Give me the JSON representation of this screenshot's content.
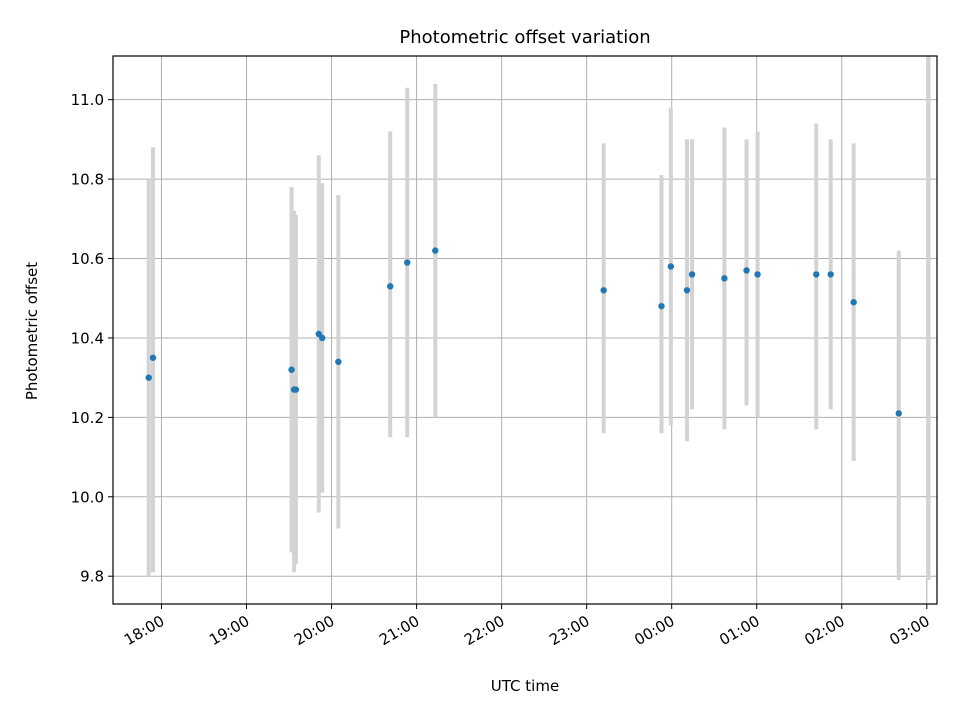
{
  "chart_data": {
    "type": "scatter",
    "title": "Photometric offset variation",
    "xlabel": "UTC time",
    "ylabel": "Photometric offset",
    "grid": true,
    "x_unit": "hours since 00:00 of first day",
    "xlim": [
      17.43,
      27.12
    ],
    "ylim": [
      9.73,
      11.11
    ],
    "x_ticks": [
      18,
      19,
      20,
      21,
      22,
      23,
      24,
      25,
      26,
      27
    ],
    "x_tick_labels": [
      "18:00",
      "19:00",
      "20:00",
      "21:00",
      "22:00",
      "23:00",
      "00:00",
      "01:00",
      "02:00",
      "03:00"
    ],
    "y_ticks": [
      9.8,
      10.0,
      10.2,
      10.4,
      10.6,
      10.8,
      11.0
    ],
    "y_tick_labels": [
      "9.8",
      "10.0",
      "10.2",
      "10.4",
      "10.6",
      "10.8",
      "11.0"
    ],
    "colors": {
      "marker": "#1f77b4",
      "errorbar": "#d3d3d3",
      "grid": "#b0b0b0",
      "axes": "#000000"
    },
    "series": [
      {
        "name": "offset",
        "points": [
          {
            "x": 17.85,
            "y": 10.3,
            "lo": 9.8,
            "hi": 10.8
          },
          {
            "x": 17.9,
            "y": 10.35,
            "lo": 9.81,
            "hi": 10.88
          },
          {
            "x": 19.53,
            "y": 10.32,
            "lo": 9.86,
            "hi": 10.78
          },
          {
            "x": 19.56,
            "y": 10.27,
            "lo": 9.81,
            "hi": 10.72
          },
          {
            "x": 19.58,
            "y": 10.27,
            "lo": 9.83,
            "hi": 10.71
          },
          {
            "x": 19.85,
            "y": 10.41,
            "lo": 9.96,
            "hi": 10.86
          },
          {
            "x": 19.89,
            "y": 10.4,
            "lo": 10.01,
            "hi": 10.79
          },
          {
            "x": 20.08,
            "y": 10.34,
            "lo": 9.92,
            "hi": 10.76
          },
          {
            "x": 20.69,
            "y": 10.53,
            "lo": 10.15,
            "hi": 10.92
          },
          {
            "x": 20.89,
            "y": 10.59,
            "lo": 10.15,
            "hi": 11.03
          },
          {
            "x": 21.22,
            "y": 10.62,
            "lo": 10.2,
            "hi": 11.04
          },
          {
            "x": 23.2,
            "y": 10.52,
            "lo": 10.16,
            "hi": 10.89
          },
          {
            "x": 23.88,
            "y": 10.48,
            "lo": 10.16,
            "hi": 10.81
          },
          {
            "x": 23.99,
            "y": 10.58,
            "lo": 10.18,
            "hi": 10.98
          },
          {
            "x": 24.18,
            "y": 10.52,
            "lo": 10.14,
            "hi": 10.9
          },
          {
            "x": 24.24,
            "y": 10.56,
            "lo": 10.22,
            "hi": 10.9
          },
          {
            "x": 24.62,
            "y": 10.55,
            "lo": 10.17,
            "hi": 10.93
          },
          {
            "x": 24.88,
            "y": 10.57,
            "lo": 10.23,
            "hi": 10.9
          },
          {
            "x": 25.01,
            "y": 10.56,
            "lo": 10.2,
            "hi": 10.92
          },
          {
            "x": 25.7,
            "y": 10.56,
            "lo": 10.17,
            "hi": 10.94
          },
          {
            "x": 25.87,
            "y": 10.56,
            "lo": 10.22,
            "hi": 10.9
          },
          {
            "x": 26.14,
            "y": 10.49,
            "lo": 10.09,
            "hi": 10.89
          },
          {
            "x": 26.67,
            "y": 10.21,
            "lo": 9.79,
            "hi": 10.62
          },
          {
            "x": 27.02,
            "y": null,
            "lo": 9.79,
            "hi": 11.11
          }
        ]
      }
    ]
  }
}
